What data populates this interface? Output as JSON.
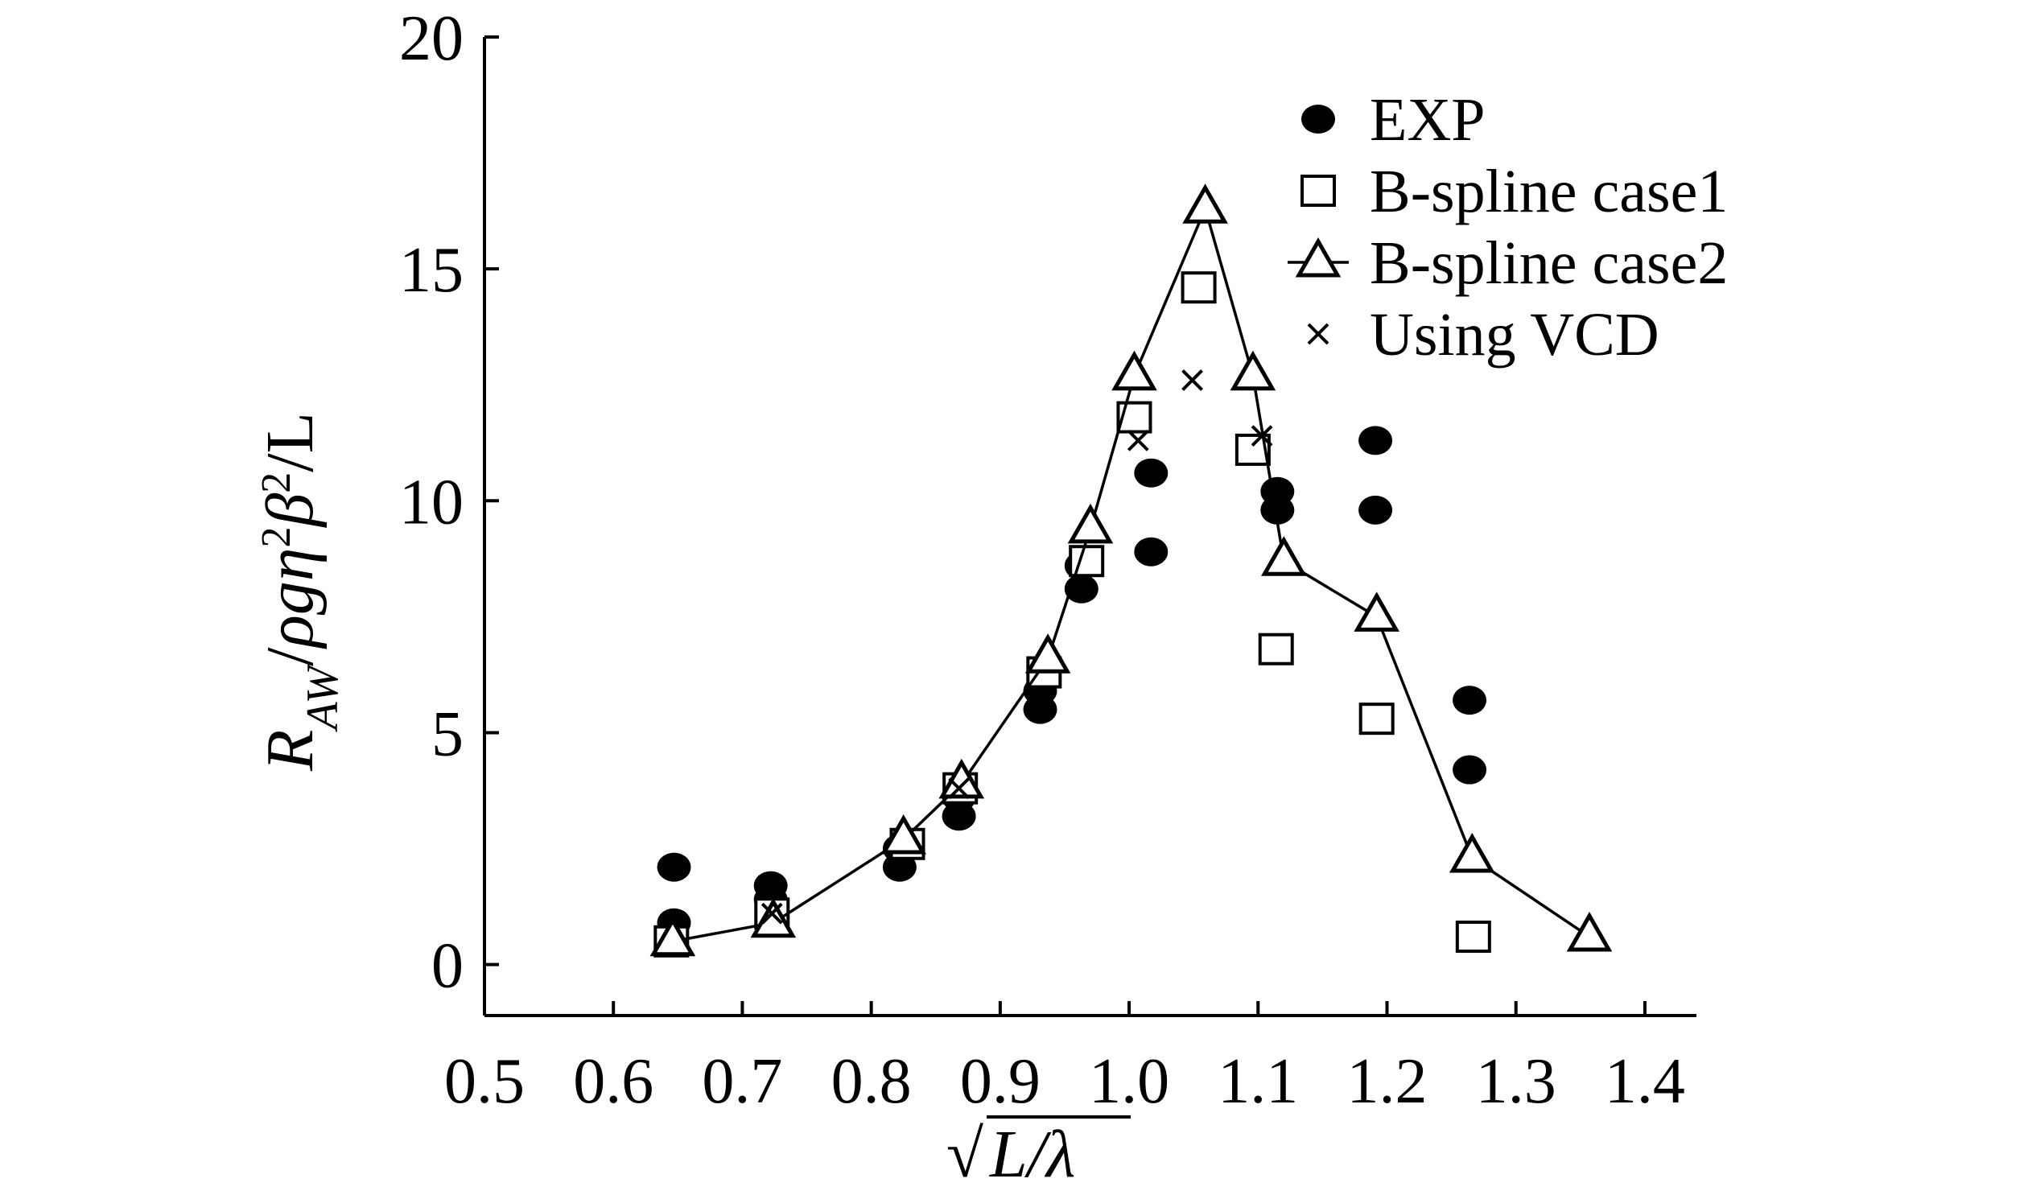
{
  "chart_data": {
    "type": "scatter",
    "title": "",
    "xlabel": "√L/λ",
    "ylabel": "R_AW/ρgη²β²/L",
    "ylabel_parts": {
      "R": "R",
      "sub": "AW",
      "slash1": "/",
      "rho": "ρ",
      "g": "g",
      "eta": "η",
      "sup1": "2",
      "beta": "β",
      "sup2": "2",
      "tail": "/L"
    },
    "xlabel_parts": {
      "radical": "√",
      "expr": "L/λ"
    },
    "xlim": [
      0.5,
      1.44
    ],
    "ylim": [
      -1.1,
      20
    ],
    "xticks": [
      0.5,
      0.6,
      0.7,
      0.8,
      0.9,
      1.0,
      1.1,
      1.2,
      1.3,
      1.4
    ],
    "xtick_labels": [
      "0.5",
      "0.6",
      "0.7",
      "0.8",
      "0.9",
      "1.0",
      "1.1",
      "1.2",
      "1.3",
      "1.4"
    ],
    "yticks": [
      0,
      5,
      10,
      15,
      20
    ],
    "ytick_labels": [
      "0",
      "5",
      "10",
      "15",
      "20"
    ],
    "legend_position": "top-right",
    "series": [
      {
        "name": "EXP",
        "marker": "filled-circle",
        "line": false,
        "x": [
          0.647,
          0.647,
          0.722,
          0.722,
          0.822,
          0.822,
          0.868,
          0.868,
          0.931,
          0.931,
          0.963,
          0.963,
          1.017,
          1.017,
          1.115,
          1.115,
          1.191,
          1.191,
          1.264,
          1.264
        ],
        "y": [
          2.1,
          0.9,
          1.7,
          1.4,
          2.5,
          2.1,
          3.6,
          3.2,
          5.9,
          5.5,
          8.6,
          8.1,
          10.6,
          8.9,
          10.2,
          9.8,
          11.3,
          9.8,
          5.7,
          4.2
        ]
      },
      {
        "name": "B-spline case1",
        "marker": "open-square",
        "line": false,
        "x": [
          0.645,
          0.723,
          0.828,
          0.869,
          0.934,
          0.967,
          1.004,
          1.054,
          1.096,
          1.114,
          1.192,
          1.267
        ],
        "y": [
          0.5,
          1.1,
          2.6,
          3.8,
          6.3,
          8.7,
          11.8,
          14.6,
          11.1,
          6.8,
          5.3,
          0.6
        ]
      },
      {
        "name": "B-spline case2",
        "marker": "open-triangle",
        "line": true,
        "x": [
          0.646,
          0.724,
          0.825,
          0.87,
          0.937,
          0.97,
          1.004,
          1.059,
          1.096,
          1.12,
          1.192,
          1.266,
          1.357
        ],
        "y": [
          0.5,
          0.9,
          2.7,
          3.9,
          6.6,
          9.4,
          12.7,
          16.3,
          12.7,
          8.7,
          7.5,
          2.3,
          0.6
        ]
      },
      {
        "name": "Using VCD",
        "marker": "cross",
        "line": false,
        "x": [
          0.723,
          0.868,
          1.007,
          1.049,
          1.103
        ],
        "y": [
          1.1,
          3.8,
          11.3,
          12.6,
          11.4
        ]
      }
    ]
  }
}
